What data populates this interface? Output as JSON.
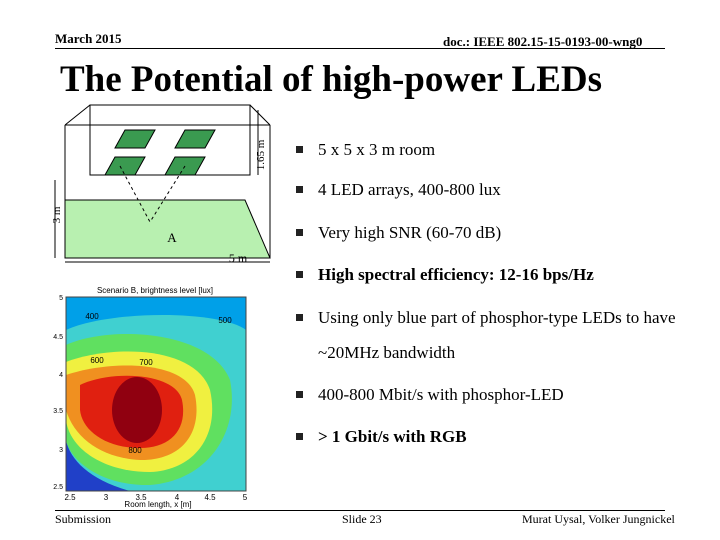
{
  "header": {
    "date": "March 2015",
    "doc": "doc.: IEEE 802.15-15-0193-00-wng0"
  },
  "title": "The Potential of high-power LEDs",
  "room_diagram": {
    "height_label": "1.65 m",
    "wall_label": "3 m",
    "length_label": "5 m",
    "point_label": "A"
  },
  "contour_plot": {
    "title": "Scenario B, brightness level [lux]",
    "x_label": "Room length, x [m]",
    "x_ticks": [
      "2.5",
      "3",
      "3.5",
      "4",
      "4.5",
      "5"
    ],
    "y_ticks": [
      "5",
      "4.5",
      "4",
      "3.5",
      "3",
      "2.5"
    ],
    "contour_labels": [
      "400",
      "500",
      "600",
      "700",
      "800"
    ]
  },
  "bullets": [
    {
      "text": "5 x 5 x 3 m room",
      "bold": false
    },
    {
      "text": "4 LED arrays, 400-800 lux",
      "bold": false
    },
    {
      "text": "Very high SNR (60-70 dB)",
      "bold": false
    },
    {
      "text": "High spectral efficiency: 12-16 bps/Hz",
      "bold": true
    },
    {
      "text": "Using only blue part of phosphor-type LEDs to have ~20MHz bandwidth",
      "bold": false
    },
    {
      "text": "400-800 Mbit/s with phosphor-LED",
      "bold": false
    },
    {
      "text": "> 1 Gbit/s with RGB",
      "bold": true
    }
  ],
  "footer": {
    "left": "Submission",
    "center": "Slide 23",
    "right": "Murat Uysal, Volker Jungnickel"
  }
}
